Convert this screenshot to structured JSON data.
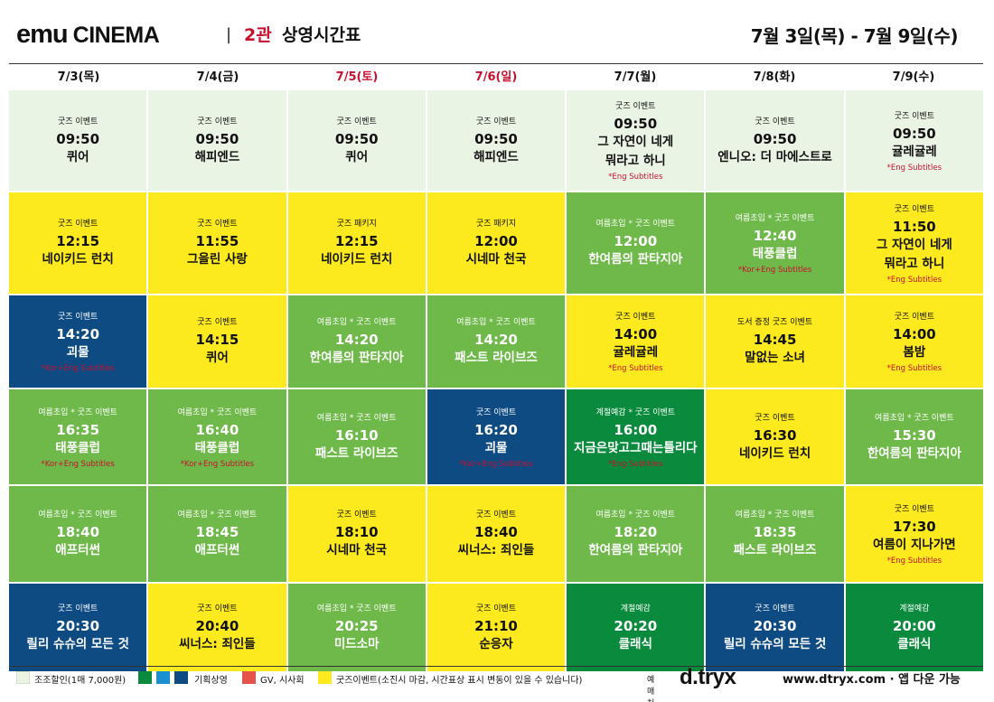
{
  "header": {
    "brand_emu": "emu",
    "brand_cinema": "CINEMA",
    "separator": "|",
    "hall": "2관",
    "subtitle": "상영시간표",
    "period": "7월 3일(목) - 7월 9일(수)"
  },
  "days": [
    {
      "label": "7/3(목)",
      "holiday": false
    },
    {
      "label": "7/4(금)",
      "holiday": false
    },
    {
      "label": "7/5(토)",
      "holiday": true
    },
    {
      "label": "7/6(일)",
      "holiday": true
    },
    {
      "label": "7/7(월)",
      "holiday": false
    },
    {
      "label": "7/8(화)",
      "holiday": false
    },
    {
      "label": "7/9(수)",
      "holiday": false
    }
  ],
  "colors": {
    "light": "#eaf4e4",
    "yellow": "#fdea1e",
    "green": "#6fb84a",
    "dark_green": "#0a8a3c",
    "navy": "#0d4b82",
    "red": "#c8102e"
  },
  "rows": [
    [
      {
        "color": "light",
        "event": "굿즈 이벤트",
        "time": "09:50",
        "title": [
          "퀴어"
        ],
        "subs": ""
      },
      {
        "color": "light",
        "event": "굿즈 이벤트",
        "time": "09:50",
        "title": [
          "해피엔드"
        ],
        "subs": ""
      },
      {
        "color": "light",
        "event": "굿즈 이벤트",
        "time": "09:50",
        "title": [
          "퀴어"
        ],
        "subs": ""
      },
      {
        "color": "light",
        "event": "굿즈 이벤트",
        "time": "09:50",
        "title": [
          "해피엔드"
        ],
        "subs": ""
      },
      {
        "color": "light",
        "event": "굿즈 이벤트",
        "time": "09:50",
        "title": [
          "그 자연이 네게",
          "뭐라고 하니"
        ],
        "subs": "*Eng Subtitles"
      },
      {
        "color": "light",
        "event": "굿즈 이벤트",
        "time": "09:50",
        "title": [
          "엔니오: 더 마에스트로"
        ],
        "subs": ""
      },
      {
        "color": "light",
        "event": "굿즈 이벤트",
        "time": "09:50",
        "title": [
          "귤레귤레"
        ],
        "subs": "*Eng Subtitles"
      }
    ],
    [
      {
        "color": "yellow",
        "event": "굿즈 이벤트",
        "time": "12:15",
        "title": [
          "네이키드 런치"
        ],
        "subs": ""
      },
      {
        "color": "yellow",
        "event": "굿즈 이벤트",
        "time": "11:55",
        "title": [
          "그을린 사랑"
        ],
        "subs": ""
      },
      {
        "color": "yellow",
        "event": "굿즈 패키지",
        "time": "12:15",
        "title": [
          "네이키드 런치"
        ],
        "subs": ""
      },
      {
        "color": "yellow",
        "event": "굿즈 패키지",
        "time": "12:00",
        "title": [
          "시네마 천국"
        ],
        "subs": ""
      },
      {
        "color": "green",
        "event": "여름초입 * 굿즈 이벤트",
        "time": "12:00",
        "title": [
          "한여름의 판타지아"
        ],
        "subs": ""
      },
      {
        "color": "green",
        "event": "여름초입 * 굿즈 이벤트",
        "time": "12:40",
        "title": [
          "태풍클럽"
        ],
        "subs": "*Kor+Eng Subtitles"
      },
      {
        "color": "yellow",
        "event": "굿즈 이벤트",
        "time": "11:50",
        "title": [
          "그 자연이 네게",
          "뭐라고 하니"
        ],
        "subs": "*Eng Subtitles"
      }
    ],
    [
      {
        "color": "navy",
        "event": "굿즈 이벤트",
        "time": "14:20",
        "title": [
          "괴물"
        ],
        "subs": "*Kor+Eng Subtitles"
      },
      {
        "color": "yellow",
        "event": "굿즈 이벤트",
        "time": "14:15",
        "title": [
          "퀴어"
        ],
        "subs": ""
      },
      {
        "color": "green",
        "event": "여름초입 * 굿즈 이벤트",
        "time": "14:20",
        "title": [
          "한여름의 판타지아"
        ],
        "subs": ""
      },
      {
        "color": "green",
        "event": "여름초입 * 굿즈 이벤트",
        "time": "14:20",
        "title": [
          "패스트 라이브즈"
        ],
        "subs": ""
      },
      {
        "color": "yellow",
        "event": "굿즈 이벤트",
        "time": "14:00",
        "title": [
          "귤레귤레"
        ],
        "subs": "*Eng Subtitles"
      },
      {
        "color": "yellow",
        "event": "도서 증정 굿즈 이벤트",
        "time": "14:45",
        "title": [
          "말없는 소녀"
        ],
        "subs": ""
      },
      {
        "color": "yellow",
        "event": "굿즈 이벤트",
        "time": "14:00",
        "title": [
          "봄밤"
        ],
        "subs": "*Eng Subtitles"
      }
    ],
    [
      {
        "color": "green",
        "event": "여름초입 * 굿즈 이벤트",
        "time": "16:35",
        "title": [
          "태풍클럽"
        ],
        "subs": "*Kor+Eng Subtitles"
      },
      {
        "color": "green",
        "event": "여름초입 * 굿즈 이벤트",
        "time": "16:40",
        "title": [
          "태풍클럽"
        ],
        "subs": "*Kor+Eng Subtitles"
      },
      {
        "color": "green",
        "event": "여름초입 * 굿즈 이벤트",
        "time": "16:10",
        "title": [
          "패스트 라이브즈"
        ],
        "subs": ""
      },
      {
        "color": "navy",
        "event": "굿즈 이벤트",
        "time": "16:20",
        "title": [
          "괴물"
        ],
        "subs": "*Kor+Eng Subtitles"
      },
      {
        "color": "dark_green",
        "event": "계절예감 * 굿즈 이벤트",
        "time": "16:00",
        "title": [
          "지금은맞고그때는틀리다"
        ],
        "subs": "*Eng Subtitles"
      },
      {
        "color": "yellow",
        "event": "굿즈 이벤트",
        "time": "16:30",
        "title": [
          "네이키드 런치"
        ],
        "subs": ""
      },
      {
        "color": "green",
        "event": "여름초입 * 굿즈 이벤트",
        "time": "15:30",
        "title": [
          "한여름의 판타지아"
        ],
        "subs": ""
      }
    ],
    [
      {
        "color": "green",
        "event": "여름초입 * 굿즈 이벤트",
        "time": "18:40",
        "title": [
          "애프터썬"
        ],
        "subs": ""
      },
      {
        "color": "green",
        "event": "여름초입 * 굿즈 이벤트",
        "time": "18:45",
        "title": [
          "애프터썬"
        ],
        "subs": ""
      },
      {
        "color": "yellow",
        "event": "굿즈 이벤트",
        "time": "18:10",
        "title": [
          "시네마 천국"
        ],
        "subs": ""
      },
      {
        "color": "yellow",
        "event": "굿즈 이벤트",
        "time": "18:40",
        "title": [
          "씨너스: 죄인들"
        ],
        "subs": ""
      },
      {
        "color": "green",
        "event": "여름초입  * 굿즈 이벤트",
        "time": "18:20",
        "title": [
          "한여름의 판타지아"
        ],
        "subs": ""
      },
      {
        "color": "green",
        "event": "여름초입 * 굿즈 이벤트",
        "time": "18:35",
        "title": [
          "패스트 라이브즈"
        ],
        "subs": ""
      },
      {
        "color": "yellow",
        "event": "굿즈 이벤트",
        "time": "17:30",
        "title": [
          "여름이 지나가면"
        ],
        "subs": "*Eng Subtitles"
      }
    ],
    [
      {
        "color": "navy",
        "event": "굿즈 이벤트",
        "time": "20:30",
        "title": [
          "릴리 슈슈의 모든 것"
        ],
        "subs": ""
      },
      {
        "color": "yellow",
        "event": "굿즈 이벤트",
        "time": "20:40",
        "title": [
          "씨너스: 죄인들"
        ],
        "subs": ""
      },
      {
        "color": "green",
        "event": "여름초입 * 굿즈 이벤트",
        "time": "20:25",
        "title": [
          "미드소마"
        ],
        "subs": ""
      },
      {
        "color": "yellow",
        "event": "굿즈 이벤트",
        "time": "21:10",
        "title": [
          "순응자"
        ],
        "subs": ""
      },
      {
        "color": "dark_green",
        "event": "계절예감",
        "time": "20:20",
        "title": [
          "클래식"
        ],
        "subs": ""
      },
      {
        "color": "navy",
        "event": "굿즈 이벤트",
        "time": "20:30",
        "title": [
          "릴리 슈슈의 모든 것"
        ],
        "subs": ""
      },
      {
        "color": "dark_green",
        "event": "계절예감",
        "time": "20:00",
        "title": [
          "클래식"
        ],
        "subs": ""
      }
    ]
  ],
  "legend": {
    "early": "조조할인(1매 7,000원)",
    "special": "기획상영",
    "gv": "GV, 시사회",
    "goods": "굿즈이벤트(소진시 마감, 시간표상 표시 변동이 있을 수 있습니다)"
  },
  "footer": {
    "booking_label": "예매처",
    "logo": "d.tryx",
    "site": "www.dtryx.com · 앱 다운 가능"
  }
}
